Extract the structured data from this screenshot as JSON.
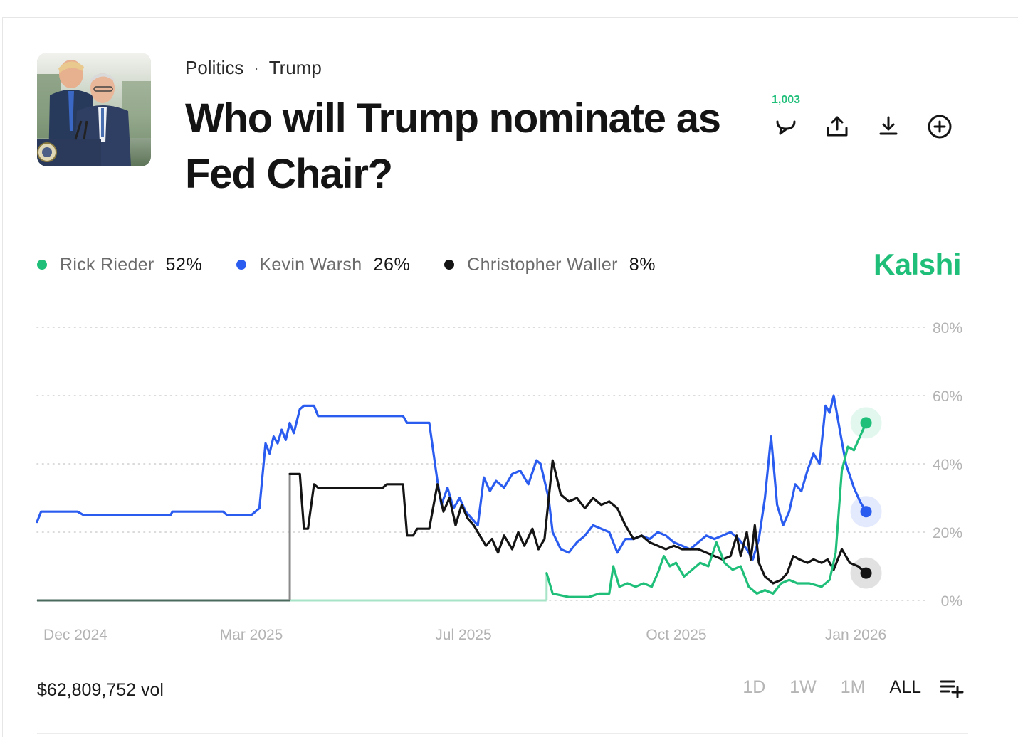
{
  "breadcrumb": {
    "category": "Politics",
    "separator": "·",
    "subcategory": "Trump"
  },
  "title": "Who will Trump nominate as Fed Chair?",
  "actions": {
    "comment_count": "1,003"
  },
  "brand": "Kalshi",
  "legend": [
    {
      "name": "Rick Rieder",
      "value": "52%",
      "color": "#1fbf7a"
    },
    {
      "name": "Kevin Warsh",
      "value": "26%",
      "color": "#2b5cf0"
    },
    {
      "name": "Christopher Waller",
      "value": "8%",
      "color": "#141414"
    }
  ],
  "footer": {
    "volume": "$62,809,752 vol",
    "ranges": [
      "1D",
      "1W",
      "1M",
      "ALL"
    ],
    "active_range": "ALL"
  },
  "chart_data": {
    "type": "line",
    "y_ticks": [
      "0%",
      "20%",
      "40%",
      "60%",
      "80%"
    ],
    "x_ticks": [
      "Dec 2024",
      "Mar 2025",
      "Jul 2025",
      "Oct 2025",
      "Jan 2026"
    ],
    "ylim": [
      0,
      80
    ],
    "grid": "dotted horizontal",
    "x_start": "2024-11-15",
    "x_end": "2026-01-15",
    "series": [
      {
        "name": "Kevin Warsh",
        "color": "#2b5cf0",
        "points": [
          [
            "2024-11-15",
            23
          ],
          [
            "2024-11-17",
            26
          ],
          [
            "2024-12-05",
            26
          ],
          [
            "2024-12-08",
            25
          ],
          [
            "2025-01-20",
            25
          ],
          [
            "2025-01-21",
            26
          ],
          [
            "2025-02-15",
            26
          ],
          [
            "2025-02-17",
            25
          ],
          [
            "2025-03-01",
            25
          ],
          [
            "2025-03-05",
            27
          ],
          [
            "2025-03-08",
            46
          ],
          [
            "2025-03-10",
            43
          ],
          [
            "2025-03-12",
            48
          ],
          [
            "2025-03-14",
            46
          ],
          [
            "2025-03-16",
            50
          ],
          [
            "2025-03-18",
            47
          ],
          [
            "2025-03-20",
            52
          ],
          [
            "2025-03-22",
            49
          ],
          [
            "2025-03-25",
            56
          ],
          [
            "2025-03-27",
            57
          ],
          [
            "2025-04-01",
            57
          ],
          [
            "2025-04-03",
            54
          ],
          [
            "2025-05-15",
            54
          ],
          [
            "2025-05-17",
            52
          ],
          [
            "2025-05-28",
            52
          ],
          [
            "2025-06-01",
            35
          ],
          [
            "2025-06-03",
            28
          ],
          [
            "2025-06-06",
            33
          ],
          [
            "2025-06-09",
            27
          ],
          [
            "2025-06-12",
            30
          ],
          [
            "2025-06-15",
            26
          ],
          [
            "2025-06-18",
            24
          ],
          [
            "2025-06-21",
            22
          ],
          [
            "2025-06-24",
            36
          ],
          [
            "2025-06-27",
            32
          ],
          [
            "2025-06-30",
            35
          ],
          [
            "2025-07-04",
            33
          ],
          [
            "2025-07-08",
            37
          ],
          [
            "2025-07-12",
            38
          ],
          [
            "2025-07-16",
            34
          ],
          [
            "2025-07-20",
            41
          ],
          [
            "2025-07-22",
            40
          ],
          [
            "2025-07-26",
            30
          ],
          [
            "2025-07-28",
            20
          ],
          [
            "2025-08-01",
            15
          ],
          [
            "2025-08-05",
            14
          ],
          [
            "2025-08-09",
            17
          ],
          [
            "2025-08-13",
            19
          ],
          [
            "2025-08-17",
            22
          ],
          [
            "2025-08-21",
            21
          ],
          [
            "2025-08-25",
            20
          ],
          [
            "2025-08-29",
            14
          ],
          [
            "2025-09-02",
            18
          ],
          [
            "2025-09-06",
            18
          ],
          [
            "2025-09-10",
            19
          ],
          [
            "2025-09-14",
            18
          ],
          [
            "2025-09-18",
            20
          ],
          [
            "2025-09-22",
            19
          ],
          [
            "2025-09-26",
            17
          ],
          [
            "2025-09-30",
            16
          ],
          [
            "2025-10-04",
            15
          ],
          [
            "2025-10-08",
            17
          ],
          [
            "2025-10-12",
            19
          ],
          [
            "2025-10-16",
            18
          ],
          [
            "2025-10-20",
            19
          ],
          [
            "2025-10-24",
            20
          ],
          [
            "2025-10-28",
            18
          ],
          [
            "2025-11-01",
            15
          ],
          [
            "2025-11-04",
            12
          ],
          [
            "2025-11-07",
            18
          ],
          [
            "2025-11-10",
            30
          ],
          [
            "2025-11-13",
            48
          ],
          [
            "2025-11-16",
            28
          ],
          [
            "2025-11-19",
            22
          ],
          [
            "2025-11-22",
            26
          ],
          [
            "2025-11-25",
            34
          ],
          [
            "2025-11-28",
            32
          ],
          [
            "2025-12-01",
            38
          ],
          [
            "2025-12-04",
            43
          ],
          [
            "2025-12-07",
            40
          ],
          [
            "2025-12-10",
            57
          ],
          [
            "2025-12-12",
            55
          ],
          [
            "2025-12-14",
            60
          ],
          [
            "2025-12-17",
            50
          ],
          [
            "2025-12-20",
            40
          ],
          [
            "2025-12-24",
            33
          ],
          [
            "2025-12-27",
            29
          ],
          [
            "2025-12-30",
            26
          ]
        ]
      },
      {
        "name": "Christopher Waller",
        "color": "#141414",
        "points": [
          [
            "2024-11-15",
            0
          ],
          [
            "2025-03-20",
            0
          ],
          [
            "2025-03-20",
            37
          ],
          [
            "2025-03-25",
            37
          ],
          [
            "2025-03-27",
            21
          ],
          [
            "2025-03-29",
            21
          ],
          [
            "2025-04-01",
            34
          ],
          [
            "2025-04-03",
            33
          ],
          [
            "2025-05-05",
            33
          ],
          [
            "2025-05-07",
            34
          ],
          [
            "2025-05-15",
            34
          ],
          [
            "2025-05-17",
            19
          ],
          [
            "2025-05-20",
            19
          ],
          [
            "2025-05-22",
            21
          ],
          [
            "2025-05-28",
            21
          ],
          [
            "2025-06-01",
            34
          ],
          [
            "2025-06-04",
            26
          ],
          [
            "2025-06-07",
            30
          ],
          [
            "2025-06-10",
            22
          ],
          [
            "2025-06-13",
            28
          ],
          [
            "2025-06-16",
            24
          ],
          [
            "2025-06-19",
            22
          ],
          [
            "2025-06-22",
            19
          ],
          [
            "2025-06-25",
            16
          ],
          [
            "2025-06-28",
            18
          ],
          [
            "2025-07-01",
            14
          ],
          [
            "2025-07-04",
            19
          ],
          [
            "2025-07-08",
            15
          ],
          [
            "2025-07-11",
            20
          ],
          [
            "2025-07-14",
            16
          ],
          [
            "2025-07-18",
            21
          ],
          [
            "2025-07-21",
            15
          ],
          [
            "2025-07-24",
            18
          ],
          [
            "2025-07-28",
            41
          ],
          [
            "2025-08-01",
            31
          ],
          [
            "2025-08-05",
            29
          ],
          [
            "2025-08-09",
            30
          ],
          [
            "2025-08-13",
            27
          ],
          [
            "2025-08-17",
            30
          ],
          [
            "2025-08-21",
            28
          ],
          [
            "2025-08-25",
            29
          ],
          [
            "2025-08-29",
            27
          ],
          [
            "2025-09-02",
            22
          ],
          [
            "2025-09-06",
            18
          ],
          [
            "2025-09-10",
            19
          ],
          [
            "2025-09-14",
            17
          ],
          [
            "2025-09-18",
            16
          ],
          [
            "2025-09-22",
            15
          ],
          [
            "2025-09-26",
            16
          ],
          [
            "2025-09-30",
            15
          ],
          [
            "2025-10-04",
            15
          ],
          [
            "2025-10-08",
            15
          ],
          [
            "2025-10-12",
            14
          ],
          [
            "2025-10-16",
            13
          ],
          [
            "2025-10-20",
            12
          ],
          [
            "2025-10-24",
            13
          ],
          [
            "2025-10-27",
            19
          ],
          [
            "2025-10-29",
            13
          ],
          [
            "2025-11-01",
            20
          ],
          [
            "2025-11-03",
            12
          ],
          [
            "2025-11-05",
            22
          ],
          [
            "2025-11-07",
            11
          ],
          [
            "2025-11-10",
            7
          ],
          [
            "2025-11-14",
            5
          ],
          [
            "2025-11-18",
            6
          ],
          [
            "2025-11-21",
            8
          ],
          [
            "2025-11-24",
            13
          ],
          [
            "2025-11-27",
            12
          ],
          [
            "2025-12-01",
            11
          ],
          [
            "2025-12-04",
            12
          ],
          [
            "2025-12-08",
            11
          ],
          [
            "2025-12-11",
            12
          ],
          [
            "2025-12-14",
            9
          ],
          [
            "2025-12-18",
            15
          ],
          [
            "2025-12-22",
            11
          ],
          [
            "2025-12-26",
            10
          ],
          [
            "2025-12-30",
            8
          ]
        ]
      },
      {
        "name": "Rick Rieder",
        "color": "#1fbf7a",
        "points": [
          [
            "2024-11-15",
            0
          ],
          [
            "2025-03-20",
            0
          ],
          [
            "2025-07-25",
            0
          ],
          [
            "2025-07-25",
            8
          ],
          [
            "2025-07-28",
            2
          ],
          [
            "2025-08-05",
            1
          ],
          [
            "2025-08-15",
            1
          ],
          [
            "2025-08-20",
            2
          ],
          [
            "2025-08-25",
            2
          ],
          [
            "2025-08-27",
            10
          ],
          [
            "2025-08-30",
            4
          ],
          [
            "2025-09-03",
            5
          ],
          [
            "2025-09-07",
            4
          ],
          [
            "2025-09-11",
            5
          ],
          [
            "2025-09-15",
            4
          ],
          [
            "2025-09-18",
            8
          ],
          [
            "2025-09-21",
            13
          ],
          [
            "2025-09-24",
            10
          ],
          [
            "2025-09-27",
            11
          ],
          [
            "2025-10-01",
            7
          ],
          [
            "2025-10-05",
            9
          ],
          [
            "2025-10-09",
            11
          ],
          [
            "2025-10-13",
            10
          ],
          [
            "2025-10-17",
            17
          ],
          [
            "2025-10-21",
            11
          ],
          [
            "2025-10-25",
            9
          ],
          [
            "2025-10-29",
            10
          ],
          [
            "2025-11-02",
            4
          ],
          [
            "2025-11-06",
            2
          ],
          [
            "2025-11-10",
            3
          ],
          [
            "2025-11-14",
            2
          ],
          [
            "2025-11-18",
            5
          ],
          [
            "2025-11-22",
            6
          ],
          [
            "2025-11-26",
            5
          ],
          [
            "2025-12-02",
            5
          ],
          [
            "2025-12-08",
            4
          ],
          [
            "2025-12-12",
            6
          ],
          [
            "2025-12-15",
            14
          ],
          [
            "2025-12-18",
            38
          ],
          [
            "2025-12-21",
            45
          ],
          [
            "2025-12-24",
            44
          ],
          [
            "2025-12-27",
            48
          ],
          [
            "2025-12-30",
            52
          ]
        ]
      }
    ]
  }
}
